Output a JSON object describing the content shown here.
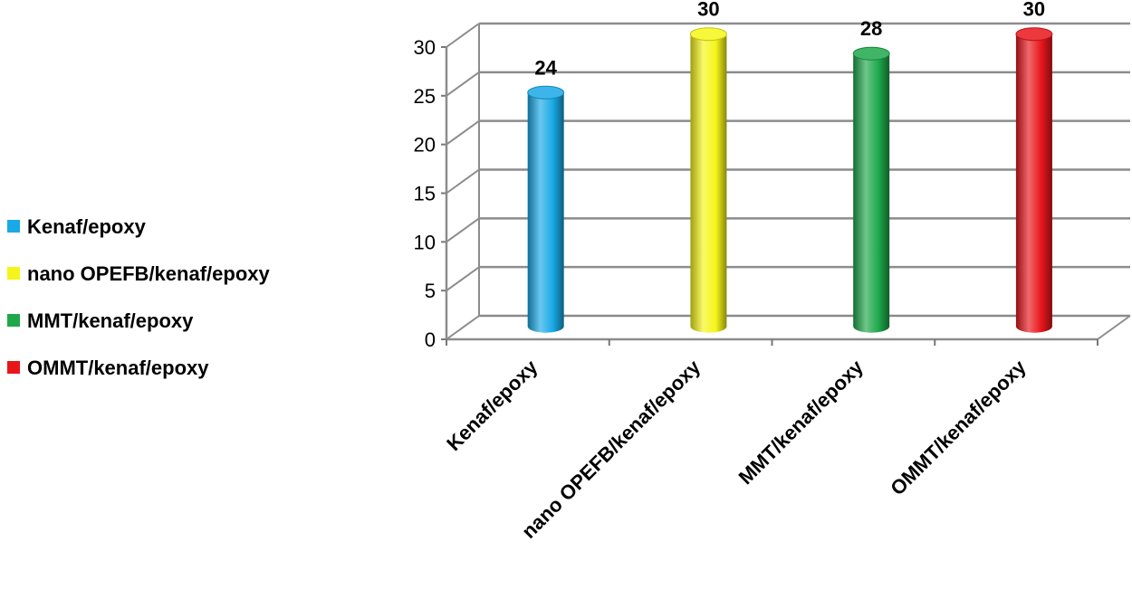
{
  "chart_data": {
    "type": "bar",
    "categories": [
      "Kenaf/epoxy",
      "nano OPEFB/kenaf/epoxy",
      "MMT/kenaf/epoxy",
      "OMMT/kenaf/epoxy"
    ],
    "values": [
      24,
      30,
      28,
      30
    ],
    "data_labels": [
      "24",
      "30",
      "28",
      "30"
    ],
    "colors": [
      "#19a9e6",
      "#f5f519",
      "#1ea84b",
      "#e8161b"
    ],
    "ylim": [
      0,
      30
    ],
    "yticks": [
      "0",
      "5",
      "10",
      "15",
      "20",
      "25",
      "30"
    ],
    "grid": true,
    "style": "3d-cylinder",
    "legend": {
      "position": "left",
      "entries": [
        "Kenaf/epoxy",
        "nano OPEFB/kenaf/epoxy",
        "MMT/kenaf/epoxy",
        "OMMT/kenaf/epoxy"
      ]
    }
  }
}
